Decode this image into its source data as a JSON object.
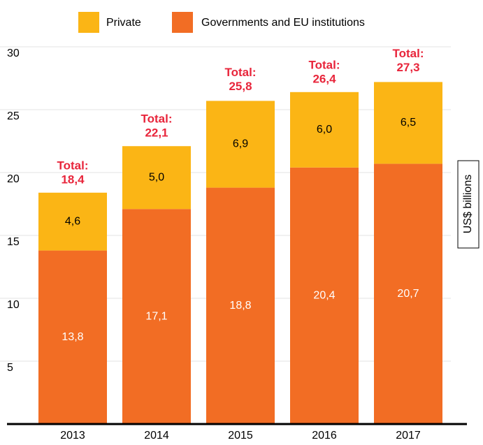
{
  "chart_data": {
    "type": "stacked_bar",
    "categories": [
      "2013",
      "2014",
      "2015",
      "2016",
      "2017"
    ],
    "series": [
      {
        "name": "Governments and EU institutions",
        "color": "#f26d24",
        "values": [
          13.8,
          17.1,
          18.8,
          20.4,
          20.7
        ],
        "value_labels": [
          "13,8",
          "17,1",
          "18,8",
          "20,4",
          "20,7"
        ]
      },
      {
        "name": "Private",
        "color": "#fbb515",
        "values": [
          4.6,
          5.0,
          6.9,
          6.0,
          6.5
        ],
        "value_labels": [
          "4,6",
          "5,0",
          "6,9",
          "6,0",
          "6,5"
        ]
      }
    ],
    "total_label": "Total:",
    "totals": {
      "values": [
        18.4,
        22.1,
        25.8,
        26.4,
        27.3
      ],
      "value_labels": [
        "18,4",
        "22,1",
        "25,8",
        "26,4",
        "27,3"
      ],
      "color": "#e8253b"
    },
    "y_label": "US$ billions",
    "ylim": [
      0,
      30
    ],
    "yticks": [
      5,
      10,
      15,
      20,
      25,
      30
    ],
    "grid": true
  }
}
